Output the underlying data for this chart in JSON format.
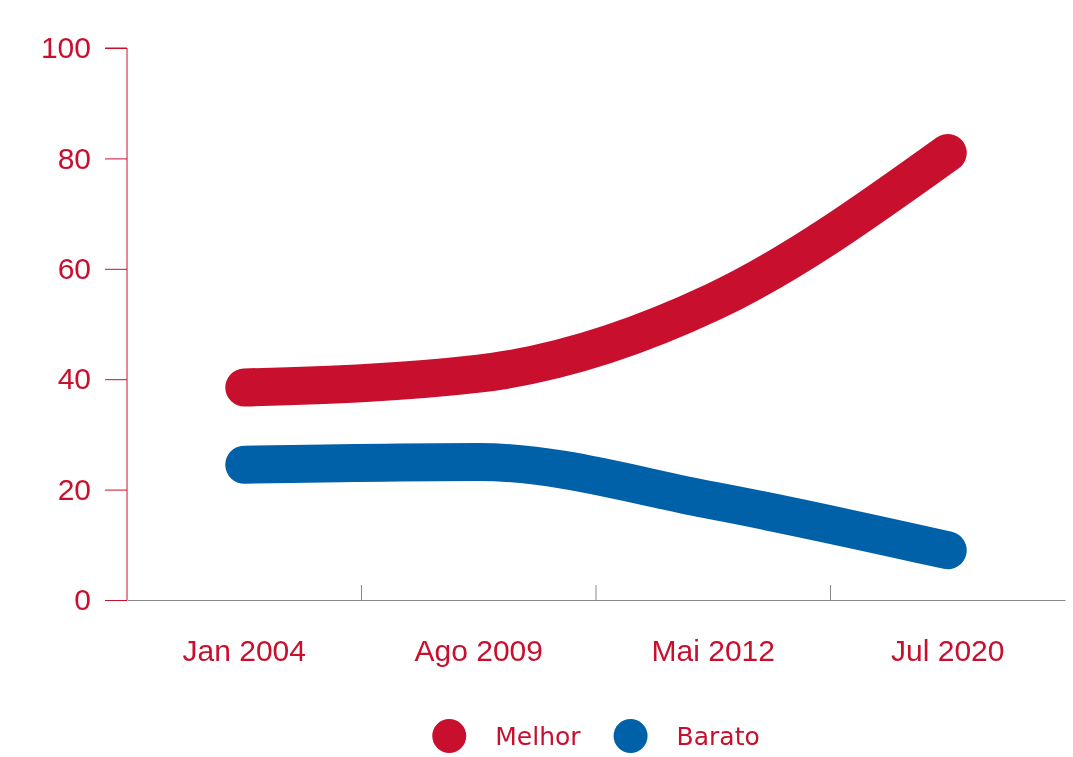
{
  "chart_data": {
    "type": "line",
    "categories": [
      "Jan 2004",
      "Ago 2009",
      "Mai 2012",
      "Jul 2020"
    ],
    "series": [
      {
        "name": "Melhor",
        "color": "#c8102e",
        "values": [
          38.5,
          41,
          54,
          81
        ]
      },
      {
        "name": "Barato",
        "color": "#0060a8",
        "values": [
          24.5,
          25,
          18,
          9
        ]
      }
    ],
    "ylim": [
      0,
      100
    ],
    "yticks": [
      0,
      20,
      40,
      60,
      80,
      100
    ],
    "grid": false,
    "legend": "bottom",
    "line_style": "solid"
  }
}
